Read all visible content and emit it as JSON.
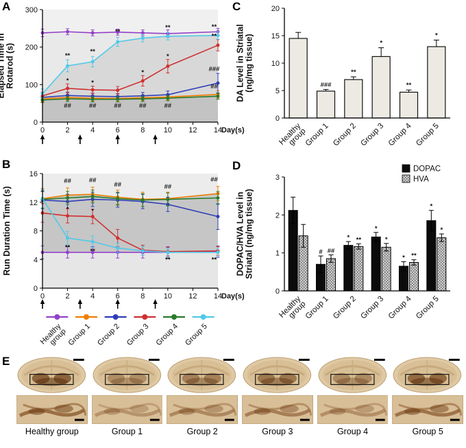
{
  "figure": {
    "background": "#ffffff",
    "panel_labels": {
      "A": "A",
      "B": "B",
      "C": "C",
      "D": "D",
      "E": "E"
    }
  },
  "groups": [
    {
      "name": "Healthy group",
      "color": "#9440c8"
    },
    {
      "name": "Group 1",
      "color": "#f07d00"
    },
    {
      "name": "Group 2",
      "color": "#2f3db8"
    },
    {
      "name": "Group 3",
      "color": "#d03030"
    },
    {
      "name": "Group 4",
      "color": "#2a7a2a"
    },
    {
      "name": "Group 5",
      "color": "#52c8e8"
    }
  ],
  "chart_data": [
    {
      "panel": "A",
      "type": "line",
      "ylabel_lines": [
        "Elapsed Time in",
        "Rotarod (s)"
      ],
      "xlabel": "Day(s)",
      "xlim": [
        0,
        14
      ],
      "ylim": [
        0,
        300
      ],
      "xticks": [
        0,
        2,
        4,
        6,
        8,
        10,
        12,
        14
      ],
      "yticks": [
        0,
        100,
        200,
        300
      ],
      "x": [
        0,
        2,
        4,
        6,
        8,
        10,
        14
      ],
      "plot_bg": "#f0f0f0",
      "areas": [
        {
          "series": 0,
          "color": "#e9e9e9"
        },
        {
          "series": 5,
          "color": "#d8d8d8"
        },
        {
          "series": 1,
          "color": "#c3c3c3"
        }
      ],
      "series": [
        {
          "name": "Healthy group",
          "color": "#9440c8",
          "values": [
            238,
            241,
            238,
            240,
            238,
            236,
            241
          ],
          "err": [
            10,
            8,
            8,
            8,
            8,
            10,
            9
          ]
        },
        {
          "name": "Group 1",
          "color": "#f07d00",
          "values": [
            62,
            66,
            64,
            63,
            65,
            67,
            74
          ],
          "err": [
            8,
            8,
            8,
            8,
            8,
            8,
            10
          ]
        },
        {
          "name": "Group 2",
          "color": "#2f3db8",
          "values": [
            66,
            71,
            69,
            68,
            70,
            73,
            104
          ],
          "err": [
            9,
            9,
            8,
            8,
            9,
            10,
            26
          ]
        },
        {
          "name": "Group 3",
          "color": "#d03030",
          "values": [
            70,
            90,
            86,
            85,
            110,
            149,
            205
          ],
          "err": [
            10,
            12,
            10,
            10,
            14,
            18,
            15
          ]
        },
        {
          "name": "Group 4",
          "color": "#2a7a2a",
          "values": [
            59,
            62,
            61,
            61,
            62,
            64,
            69
          ],
          "err": [
            7,
            7,
            7,
            7,
            7,
            7,
            8
          ]
        },
        {
          "name": "Group 5",
          "color": "#52c8e8",
          "values": [
            76,
            150,
            161,
            214,
            224,
            229,
            231
          ],
          "err": [
            12,
            16,
            14,
            12,
            10,
            10,
            10
          ]
        }
      ],
      "annotations": [
        {
          "x": 2,
          "y": 172,
          "t": "**"
        },
        {
          "x": 4,
          "y": 183,
          "t": "**"
        },
        {
          "x": 6,
          "y": 236,
          "t": "**"
        },
        {
          "x": 10,
          "y": 247,
          "t": "**"
        },
        {
          "x": 13.7,
          "y": 249,
          "t": "**"
        },
        {
          "x": 13.7,
          "y": 224,
          "t": "**"
        },
        {
          "x": 10,
          "y": 170,
          "t": "*"
        },
        {
          "x": 2,
          "y": 105,
          "t": "*"
        },
        {
          "x": 4,
          "y": 100,
          "t": "*"
        },
        {
          "x": 8,
          "y": 127,
          "t": "*"
        },
        {
          "x": 13.7,
          "y": 136,
          "t": "###"
        },
        {
          "x": 13.7,
          "y": 90,
          "t": "##"
        },
        {
          "x": 2,
          "y": 38,
          "t": "##"
        },
        {
          "x": 4,
          "y": 38,
          "t": "##"
        },
        {
          "x": 6,
          "y": 38,
          "t": "##"
        },
        {
          "x": 8,
          "y": 38,
          "t": "##"
        },
        {
          "x": 10,
          "y": 38,
          "t": "##"
        }
      ],
      "arrows_x": [
        0,
        3,
        6,
        9
      ]
    },
    {
      "panel": "B",
      "type": "line",
      "ylabel_lines": [
        "Run Duration Time (s)"
      ],
      "xlabel": "Day(s)",
      "xlim": [
        0,
        14
      ],
      "ylim": [
        0,
        16
      ],
      "xticks": [
        0,
        2,
        4,
        6,
        8,
        10,
        12,
        14
      ],
      "yticks": [
        0,
        4,
        8,
        12,
        16
      ],
      "x": [
        0,
        2,
        4,
        6,
        8,
        10,
        14
      ],
      "plot_bg": "#ececec",
      "areas": [
        {
          "series": 1,
          "color": "#c6c6c6"
        },
        {
          "series": 0,
          "color": "#e6e6e6"
        }
      ],
      "series": [
        {
          "name": "Healthy group",
          "color": "#9440c8",
          "values": [
            5,
            5,
            5,
            5,
            5,
            5,
            5.1
          ],
          "err": [
            0.9,
            0.8,
            0.8,
            0.8,
            0.8,
            0.8,
            0.8
          ]
        },
        {
          "name": "Group 1",
          "color": "#f07d00",
          "values": [
            12.5,
            13,
            13.1,
            12.7,
            12.4,
            12.5,
            13.2
          ],
          "err": [
            1.4,
            1,
            1,
            1,
            1,
            0.9,
            1
          ]
        },
        {
          "name": "Group 2",
          "color": "#2f3db8",
          "values": [
            12.3,
            12.1,
            12.4,
            12.3,
            12.1,
            11.7,
            10
          ],
          "err": [
            1.2,
            1,
            1,
            1,
            1,
            1,
            1.8
          ]
        },
        {
          "name": "Group 3",
          "color": "#d03030",
          "values": [
            10.5,
            10.1,
            10,
            7,
            5.3,
            5.1,
            5.2
          ],
          "err": [
            1.3,
            1,
            1,
            1.2,
            0.7,
            0.6,
            0.6
          ]
        },
        {
          "name": "Group 4",
          "color": "#2a7a2a",
          "values": [
            12.4,
            12.6,
            12.8,
            12.5,
            12.3,
            12.4,
            12.6
          ],
          "err": [
            1.2,
            0.9,
            0.9,
            0.9,
            0.9,
            0.9,
            0.9
          ]
        },
        {
          "name": "Group 5",
          "color": "#52c8e8",
          "values": [
            12.5,
            7,
            6.5,
            5.6,
            5.2,
            5,
            5
          ],
          "err": [
            1.3,
            0.9,
            0.8,
            0.7,
            0.6,
            0.6,
            0.6
          ]
        }
      ],
      "annotations": [
        {
          "x": 2,
          "y": 14.7,
          "t": "##"
        },
        {
          "x": 4,
          "y": 14.8,
          "t": "##"
        },
        {
          "x": 6,
          "y": 14.2,
          "t": "##"
        },
        {
          "x": 10,
          "y": 13.9,
          "t": "##"
        },
        {
          "x": 13.7,
          "y": 14.9,
          "t": "##"
        },
        {
          "x": 2,
          "y": 5.4,
          "t": "**"
        },
        {
          "x": 4,
          "y": 4.9,
          "t": "**"
        },
        {
          "x": 10,
          "y": 3.7,
          "t": "**"
        },
        {
          "x": 13.7,
          "y": 3.7,
          "t": "**"
        },
        {
          "x": 2,
          "y": 10.9,
          "t": "•"
        },
        {
          "x": 4,
          "y": 10.7,
          "t": "•"
        }
      ],
      "arrows_x": [
        0,
        3,
        6,
        9
      ],
      "legend_labels": [
        "Healthy group",
        "Group 1",
        "Group 2",
        "Group 3",
        "Group 4",
        "Group 5"
      ]
    },
    {
      "panel": "C",
      "type": "bar",
      "ylabel_lines": [
        "DA Level in Striatal",
        "(ng/mg tissue)"
      ],
      "ylim": [
        0,
        20
      ],
      "yticks": [
        0,
        5,
        10,
        15,
        20
      ],
      "categories": [
        "Healthy group",
        "Group 1",
        "Group 2",
        "Group 3",
        "Group 4",
        "Group 5"
      ],
      "values": [
        14.5,
        4.9,
        7.0,
        11.2,
        4.7,
        13.0
      ],
      "errors": [
        1.1,
        0.3,
        0.5,
        1.6,
        0.4,
        1.2
      ],
      "sig": [
        "",
        "###",
        "**",
        "*",
        "**",
        "*"
      ],
      "bar_fill": "#eceae3",
      "bar_stroke": "#111111"
    },
    {
      "panel": "D",
      "type": "grouped_bar",
      "ylabel_lines": [
        "DOPAC/HVA Level in",
        "Striatal (ng/mg tissue)"
      ],
      "ylim": [
        0,
        3
      ],
      "yticks": [
        0,
        1,
        2,
        3
      ],
      "categories": [
        "Healthy group",
        "Group 1",
        "Group 2",
        "Group 3",
        "Group 4",
        "Group 5"
      ],
      "series": [
        {
          "name": "DOPAC",
          "fill": "#0b0b0b",
          "values": [
            2.12,
            0.7,
            1.2,
            1.42,
            0.65,
            1.85
          ],
          "errors": [
            0.35,
            0.22,
            0.1,
            0.12,
            0.12,
            0.27
          ],
          "sig": [
            "",
            "#",
            "*",
            "*",
            "*",
            "*"
          ]
        },
        {
          "name": "HVA",
          "fill": "pattern-dots",
          "values": [
            1.45,
            0.85,
            1.17,
            1.15,
            0.75,
            1.4
          ],
          "errors": [
            0.3,
            0.1,
            0.07,
            0.1,
            0.07,
            0.1
          ],
          "sig": [
            "",
            "##",
            "**",
            "*",
            "**",
            "*"
          ]
        }
      ],
      "legend": [
        "DOPAC",
        "HVA"
      ]
    }
  ],
  "panel_e": {
    "items": [
      {
        "label": "Healthy group",
        "stain": 0.9
      },
      {
        "label": "Group 1",
        "stain": 0.25
      },
      {
        "label": "Group 2",
        "stain": 0.45
      },
      {
        "label": "Group 3",
        "stain": 0.6
      },
      {
        "label": "Group 4",
        "stain": 0.3
      },
      {
        "label": "Group 5",
        "stain": 0.8
      }
    ]
  }
}
